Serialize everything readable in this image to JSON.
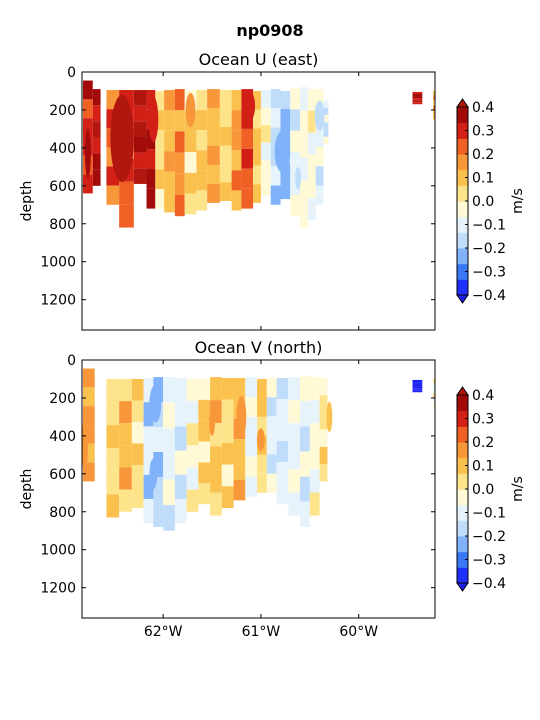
{
  "figure": {
    "title": "np0908"
  },
  "colors": {
    "levels": [
      -0.4,
      -0.3,
      -0.2,
      -0.1,
      0.0,
      0.1,
      0.2,
      0.3,
      0.4
    ],
    "fills": [
      "#1f2ffd",
      "#3a78f5",
      "#7fb2f9",
      "#bfdcfb",
      "#e6f3fb",
      "#fff9d6",
      "#fde48a",
      "#fbc14e",
      "#f8973a",
      "#f06025",
      "#d32016",
      "#a30b0b"
    ],
    "under": "#1f1ff0",
    "over": "#b2170f"
  },
  "chart_data": [
    {
      "type": "contourf",
      "title": "Ocean U (east)",
      "ylabel": "depth",
      "yticks": [
        0,
        200,
        400,
        600,
        800,
        1000,
        1200
      ],
      "yinvert": true,
      "ylim": [
        0,
        1360
      ],
      "xlim": [
        -62.83,
        -59.22
      ],
      "xticks": [
        -62,
        -61,
        -60
      ],
      "xticklabels": [],
      "colorbar": {
        "label": "m/s",
        "ticks": [
          "0.4",
          "0.3",
          "0.2",
          "0.1",
          "0.0",
          "−0.1",
          "−0.2",
          "−0.3",
          "−0.4"
        ],
        "extend": "both"
      },
      "profiles": [
        {
          "x0": -62.82,
          "x1": -62.72,
          "z0": 45,
          "z1": 640,
          "v": 0.28
        },
        {
          "x0": -62.72,
          "x1": -62.64,
          "z0": 90,
          "z1": 600,
          "v": 0.35
        },
        {
          "x0": -62.58,
          "x1": -62.45,
          "z0": 95,
          "z1": 700,
          "v": 0.22
        },
        {
          "x0": -62.45,
          "x1": -62.3,
          "z0": 95,
          "z1": 820,
          "v": 0.25
        },
        {
          "x0": -62.3,
          "x1": -62.17,
          "z0": 95,
          "z1": 590,
          "v": 0.38
        },
        {
          "x0": -62.17,
          "x1": -62.08,
          "z0": 95,
          "z1": 720,
          "v": 0.33
        },
        {
          "x0": -62.08,
          "x1": -61.99,
          "z0": 100,
          "z1": 720,
          "v": 0.05
        },
        {
          "x0": -61.99,
          "x1": -61.88,
          "z0": 95,
          "z1": 740,
          "v": 0.12
        },
        {
          "x0": -61.88,
          "x1": -61.78,
          "z0": 90,
          "z1": 760,
          "v": 0.18
        },
        {
          "x0": -61.78,
          "x1": -61.66,
          "z0": 95,
          "z1": 750,
          "v": 0.05
        },
        {
          "x0": -61.66,
          "x1": -61.55,
          "z0": 95,
          "z1": 730,
          "v": 0.06
        },
        {
          "x0": -61.55,
          "x1": -61.42,
          "z0": 90,
          "z1": 690,
          "v": 0.13
        },
        {
          "x0": -61.42,
          "x1": -61.3,
          "z0": 95,
          "z1": 680,
          "v": 0.07
        },
        {
          "x0": -61.3,
          "x1": -61.2,
          "z0": 95,
          "z1": 730,
          "v": 0.15
        },
        {
          "x0": -61.2,
          "x1": -61.08,
          "z0": 90,
          "z1": 720,
          "v": 0.27
        },
        {
          "x0": -61.08,
          "x1": -61.0,
          "z0": 100,
          "z1": 690,
          "v": 0.08
        },
        {
          "x0": -61.0,
          "x1": -60.9,
          "z0": 95,
          "z1": 650,
          "v": -0.05
        },
        {
          "x0": -60.9,
          "x1": -60.8,
          "z0": 90,
          "z1": 700,
          "v": -0.15
        },
        {
          "x0": -60.8,
          "x1": -60.7,
          "z0": 100,
          "z1": 670,
          "v": -0.22
        },
        {
          "x0": -60.7,
          "x1": -60.6,
          "z0": 85,
          "z1": 760,
          "v": -0.08
        },
        {
          "x0": -60.6,
          "x1": -60.52,
          "z0": 80,
          "z1": 820,
          "v": -0.05
        },
        {
          "x0": -60.52,
          "x1": -60.44,
          "z0": 90,
          "z1": 780,
          "v": -0.04
        },
        {
          "x0": -60.44,
          "x1": -60.36,
          "z0": 90,
          "z1": 700,
          "v": -0.1
        },
        {
          "x0": -60.36,
          "x1": -60.31,
          "z0": 150,
          "z1": 380,
          "v": -0.12
        },
        {
          "x0": -59.45,
          "x1": -59.35,
          "z0": 105,
          "z1": 170,
          "v": 0.35
        },
        {
          "x0": -59.24,
          "x1": -59.22,
          "z0": 100,
          "z1": 250,
          "v": 0.12
        }
      ],
      "patches": [
        {
          "x": -62.42,
          "z": 350,
          "rx": 0.12,
          "rz": 230,
          "v": 0.45
        },
        {
          "x": -62.1,
          "z": 250,
          "rx": 0.05,
          "rz": 120,
          "v": 0.28
        },
        {
          "x": -61.72,
          "z": 200,
          "rx": 0.05,
          "rz": 90,
          "v": 0.18
        },
        {
          "x": -61.12,
          "z": 180,
          "rx": 0.06,
          "rz": 80,
          "v": 0.32
        },
        {
          "x": -60.78,
          "z": 420,
          "rx": 0.08,
          "rz": 110,
          "v": -0.26
        },
        {
          "x": -60.62,
          "z": 560,
          "rx": 0.03,
          "rz": 60,
          "v": -0.18
        },
        {
          "x": -60.4,
          "z": 230,
          "rx": 0.05,
          "rz": 80,
          "v": -0.18
        },
        {
          "x": -62.77,
          "z": 430,
          "rx": 0.03,
          "rz": 130,
          "v": 0.38
        }
      ]
    },
    {
      "type": "contourf",
      "title": "Ocean V (north)",
      "ylabel": "depth",
      "yticks": [
        0,
        200,
        400,
        600,
        800,
        1000,
        1200
      ],
      "yinvert": true,
      "ylim": [
        0,
        1360
      ],
      "xlim": [
        -62.83,
        -59.22
      ],
      "xticks": [
        -62,
        -61,
        -60
      ],
      "xticklabels": [
        "62°W",
        "61°W",
        "60°W"
      ],
      "colorbar": {
        "label": "m/s",
        "ticks": [
          "0.4",
          "0.3",
          "0.2",
          "0.1",
          "0.0",
          "−0.1",
          "−0.2",
          "−0.3",
          "−0.4"
        ],
        "extend": "both"
      },
      "profiles": [
        {
          "x0": -62.82,
          "x1": -62.7,
          "z0": 45,
          "z1": 640,
          "v": 0.14
        },
        {
          "x0": -62.58,
          "x1": -62.45,
          "z0": 100,
          "z1": 830,
          "v": 0.06
        },
        {
          "x0": -62.45,
          "x1": -62.32,
          "z0": 100,
          "z1": 800,
          "v": 0.11
        },
        {
          "x0": -62.32,
          "x1": -62.2,
          "z0": 100,
          "z1": 780,
          "v": 0.04
        },
        {
          "x0": -62.2,
          "x1": -62.1,
          "z0": 95,
          "z1": 860,
          "v": -0.15
        },
        {
          "x0": -62.1,
          "x1": -62.0,
          "z0": 90,
          "z1": 880,
          "v": -0.18
        },
        {
          "x0": -62.0,
          "x1": -61.88,
          "z0": 90,
          "z1": 900,
          "v": -0.08
        },
        {
          "x0": -61.88,
          "x1": -61.76,
          "z0": 95,
          "z1": 860,
          "v": -0.12
        },
        {
          "x0": -61.76,
          "x1": -61.64,
          "z0": 100,
          "z1": 800,
          "v": -0.05
        },
        {
          "x0": -61.64,
          "x1": -61.52,
          "z0": 100,
          "z1": 760,
          "v": 0.05
        },
        {
          "x0": -61.52,
          "x1": -61.4,
          "z0": 90,
          "z1": 820,
          "v": 0.09
        },
        {
          "x0": -61.4,
          "x1": -61.28,
          "z0": 95,
          "z1": 780,
          "v": 0.04
        },
        {
          "x0": -61.28,
          "x1": -61.16,
          "z0": 95,
          "z1": 740,
          "v": 0.12
        },
        {
          "x0": -61.16,
          "x1": -61.04,
          "z0": 90,
          "z1": 720,
          "v": -0.06
        },
        {
          "x0": -61.04,
          "x1": -60.94,
          "z0": 100,
          "z1": 700,
          "v": 0.06
        },
        {
          "x0": -60.94,
          "x1": -60.84,
          "z0": 95,
          "z1": 700,
          "v": -0.1
        },
        {
          "x0": -60.84,
          "x1": -60.72,
          "z0": 95,
          "z1": 760,
          "v": -0.12
        },
        {
          "x0": -60.72,
          "x1": -60.6,
          "z0": 90,
          "z1": 820,
          "v": -0.06
        },
        {
          "x0": -60.6,
          "x1": -60.5,
          "z0": 85,
          "z1": 880,
          "v": -0.11
        },
        {
          "x0": -60.5,
          "x1": -60.4,
          "z0": 90,
          "z1": 820,
          "v": -0.05
        },
        {
          "x0": -60.4,
          "x1": -60.32,
          "z0": 95,
          "z1": 640,
          "v": 0.03
        },
        {
          "x0": -59.45,
          "x1": -59.35,
          "z0": 105,
          "z1": 170,
          "v": -0.42
        },
        {
          "x0": -59.24,
          "x1": -59.22,
          "z0": 100,
          "z1": 250,
          "v": -0.05
        }
      ],
      "patches": [
        {
          "x": -62.08,
          "z": 230,
          "rx": 0.06,
          "rz": 100,
          "v": -0.25
        },
        {
          "x": -62.1,
          "z": 600,
          "rx": 0.04,
          "rz": 80,
          "v": -0.22
        },
        {
          "x": -61.2,
          "z": 300,
          "rx": 0.05,
          "rz": 110,
          "v": 0.18
        },
        {
          "x": -61.0,
          "z": 420,
          "rx": 0.04,
          "rz": 60,
          "v": 0.16
        },
        {
          "x": -62.8,
          "z": 450,
          "rx": 0.03,
          "rz": 160,
          "v": 0.16
        },
        {
          "x": -61.5,
          "z": 330,
          "rx": 0.03,
          "rz": 70,
          "v": 0.15
        },
        {
          "x": -60.3,
          "z": 300,
          "rx": 0.03,
          "rz": 80,
          "v": 0.12
        }
      ]
    }
  ]
}
